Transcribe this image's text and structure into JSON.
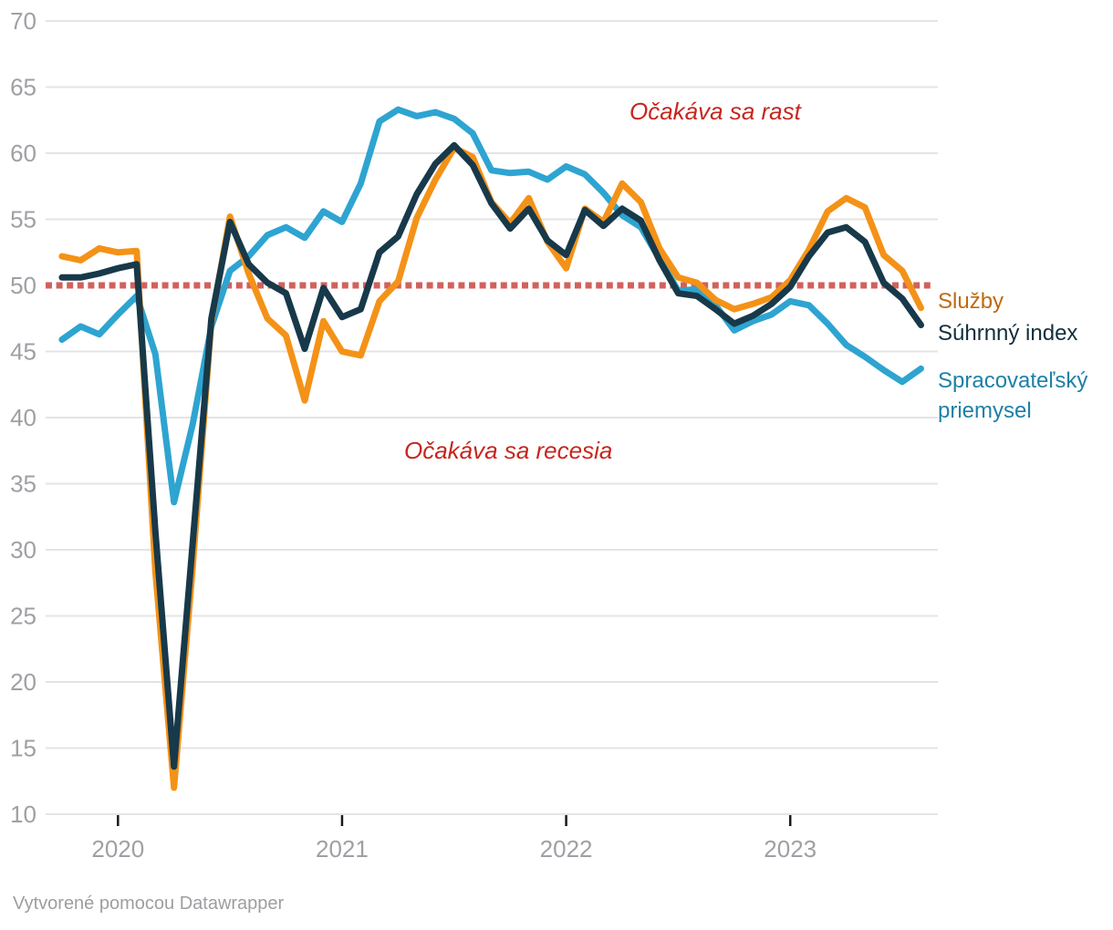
{
  "chart_data": {
    "type": "line",
    "title": "",
    "x_start": "2019-10",
    "x_end": "2023-08",
    "x_unit": "month",
    "x_tick_labels": [
      "2020",
      "2021",
      "2022",
      "2023"
    ],
    "x_tick_month_indexes": [
      3,
      15,
      27,
      39
    ],
    "ylim": [
      10,
      70
    ],
    "yticks": [
      10,
      15,
      20,
      25,
      30,
      35,
      40,
      45,
      50,
      55,
      60,
      65,
      70
    ],
    "grid": true,
    "grid_color": "#e4e4e4",
    "tick_color": "#9ea0a4",
    "tick_mark_color": "#1a1a1a",
    "reference_line": {
      "value": 50,
      "color": "#d2615c",
      "style": "dotted"
    },
    "series": [
      {
        "id": "spracovatelsky-priemysel",
        "name": "Spracovateľský priemysel",
        "color": "#2ea4d1",
        "label_color": "#1e80a7",
        "values": [
          45.9,
          46.9,
          46.3,
          47.8,
          49.2,
          44.8,
          33.6,
          39.5,
          46.9,
          51.1,
          52.2,
          53.8,
          54.4,
          53.6,
          55.6,
          54.8,
          57.7,
          62.4,
          63.3,
          62.8,
          63.1,
          62.6,
          61.5,
          58.7,
          58.5,
          58.6,
          58.0,
          59.0,
          58.4,
          57.0,
          55.3,
          54.4,
          52.0,
          49.6,
          49.7,
          48.5,
          46.6,
          47.3,
          47.8,
          48.8,
          48.5,
          47.1,
          45.5,
          44.6,
          43.6,
          42.7,
          43.7
        ]
      },
      {
        "id": "sluzby",
        "name": "Služby",
        "color": "#f49217",
        "label_color": "#bf6a10",
        "values": [
          52.2,
          51.9,
          52.8,
          52.5,
          52.6,
          28.4,
          12.0,
          28.7,
          47.3,
          55.2,
          50.9,
          47.5,
          46.2,
          41.3,
          47.3,
          45.0,
          44.7,
          48.8,
          50.3,
          55.1,
          58.0,
          60.4,
          59.7,
          56.3,
          54.7,
          56.6,
          53.3,
          51.3,
          55.8,
          54.8,
          57.7,
          56.3,
          52.8,
          50.6,
          50.2,
          48.9,
          48.2,
          48.6,
          49.1,
          50.4,
          52.7,
          55.6,
          56.6,
          55.9,
          52.3,
          51.1,
          48.3
        ]
      },
      {
        "id": "suhrnny-index",
        "name": "Súhrnný index",
        "color": "#17394a",
        "label_color": "#122e3c",
        "values": [
          50.6,
          50.6,
          50.9,
          51.3,
          51.6,
          31.4,
          13.6,
          30.5,
          47.5,
          54.8,
          51.6,
          50.2,
          49.4,
          45.2,
          49.8,
          47.6,
          48.2,
          52.5,
          53.7,
          56.9,
          59.2,
          60.6,
          59.1,
          56.2,
          54.3,
          55.8,
          53.4,
          52.3,
          55.7,
          54.5,
          55.8,
          54.9,
          51.9,
          49.4,
          49.2,
          48.2,
          47.1,
          47.7,
          48.6,
          49.9,
          52.2,
          54.0,
          54.4,
          53.3,
          50.2,
          49.0,
          47.0
        ]
      }
    ],
    "annotations": [
      {
        "text": "Očakáva sa rast",
        "color": "#c5271e",
        "position": "above-50-line"
      },
      {
        "text": "Očakáva sa recesia",
        "color": "#c5271e",
        "position": "below-50-line"
      }
    ],
    "legend_position": "right-end-of-lines"
  },
  "footer": {
    "text": "Vytvorené pomocou Datawrapper"
  }
}
